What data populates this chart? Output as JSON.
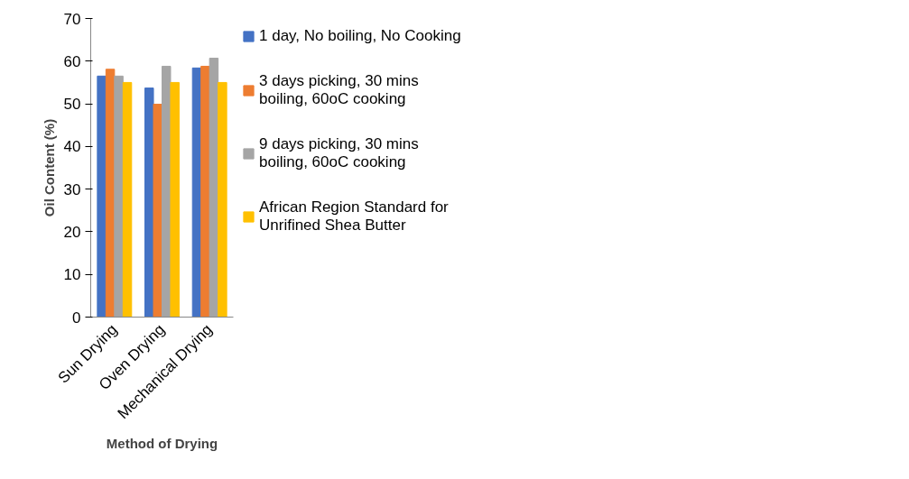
{
  "chart_data": {
    "type": "bar",
    "xlabel": "Method of Drying",
    "ylabel": "Oil Content (%)",
    "categories": [
      "Sun Drying",
      "Oven Drying",
      "Mechanical Drying"
    ],
    "series": [
      {
        "name": "1 day, No boiling, No Cooking",
        "color": "#4472c4",
        "values": [
          56.5,
          53.7,
          58.4
        ]
      },
      {
        "name": "3 days picking, 30 mins boiling, 60oC cooking",
        "color": "#ed7d31",
        "values": [
          58.1,
          49.9,
          58.8
        ]
      },
      {
        "name": "9 days picking, 30 mins boiling, 60oC cooking",
        "color": "#a5a5a5",
        "values": [
          56.5,
          58.8,
          60.7
        ]
      },
      {
        "name": "African Region Standard for Unrifined Shea Butter",
        "color": "#ffc000",
        "values": [
          55,
          55,
          55
        ]
      }
    ],
    "ylim": [
      0,
      70
    ],
    "yticks": [
      0,
      10,
      20,
      30,
      40,
      50,
      60,
      70
    ],
    "grid": false,
    "legend": "right"
  }
}
